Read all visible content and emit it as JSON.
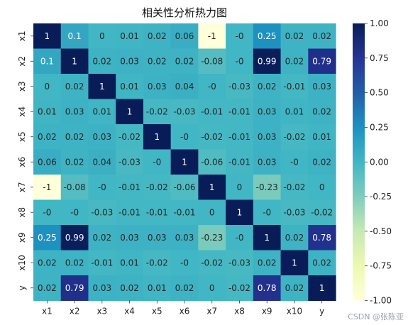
{
  "watermark": "CSDN @张陈亚",
  "chart_data": {
    "type": "heatmap",
    "title": "相关性分析热力图",
    "x_labels": [
      "x1",
      "x2",
      "x3",
      "x4",
      "x5",
      "x6",
      "x7",
      "x8",
      "x9",
      "x10",
      "y"
    ],
    "y_labels": [
      "x1",
      "x2",
      "x3",
      "x4",
      "x5",
      "x6",
      "x7",
      "x8",
      "x9",
      "x10",
      "y"
    ],
    "values": [
      [
        1,
        0.1,
        0,
        0.01,
        0.02,
        0.06,
        -1,
        0,
        0.25,
        0.02,
        0.02
      ],
      [
        0.1,
        1,
        0.02,
        0.03,
        0.02,
        0.02,
        -0.08,
        0,
        0.99,
        0.02,
        0.79
      ],
      [
        0,
        0.02,
        1,
        0.01,
        0.03,
        0.04,
        0,
        -0.03,
        0.02,
        -0.01,
        0.03
      ],
      [
        0.01,
        0.03,
        0.01,
        1,
        -0.02,
        -0.03,
        -0.01,
        -0.01,
        0.03,
        0.01,
        0.02
      ],
      [
        0.02,
        0.02,
        0.03,
        -0.02,
        1,
        0,
        -0.02,
        -0.01,
        0.03,
        -0.02,
        0.01
      ],
      [
        0.06,
        0.02,
        0.04,
        -0.03,
        0,
        1,
        -0.06,
        -0.01,
        0.03,
        0,
        0.02
      ],
      [
        -1,
        -0.08,
        0,
        -0.01,
        -0.02,
        -0.06,
        1,
        0,
        -0.23,
        -0.02,
        0
      ],
      [
        0,
        0,
        -0.03,
        -0.01,
        -0.01,
        -0.01,
        0,
        1,
        0,
        -0.03,
        -0.02
      ],
      [
        0.25,
        0.99,
        0.02,
        0.03,
        0.03,
        0.03,
        -0.23,
        0,
        1,
        0.02,
        0.78
      ],
      [
        0.02,
        0.02,
        -0.01,
        0.01,
        -0.02,
        0,
        -0.02,
        -0.03,
        0.02,
        1,
        0.02
      ],
      [
        0.02,
        0.79,
        0.03,
        0.02,
        0.01,
        0.02,
        0,
        -0.02,
        0.78,
        0.02,
        1
      ]
    ],
    "colormap": "YlGnBu",
    "colorbar_range": [
      -1,
      1
    ],
    "colorbar_ticks": [
      "1.00",
      "0.75",
      "0.50",
      "0.25",
      "0.00",
      "-0.25",
      "-0.50",
      "-0.75",
      "-1.00"
    ],
    "colorbar_tick_values": [
      1,
      0.75,
      0.5,
      0.25,
      0,
      -0.25,
      -0.5,
      -0.75,
      -1
    ],
    "annotations": true
  }
}
